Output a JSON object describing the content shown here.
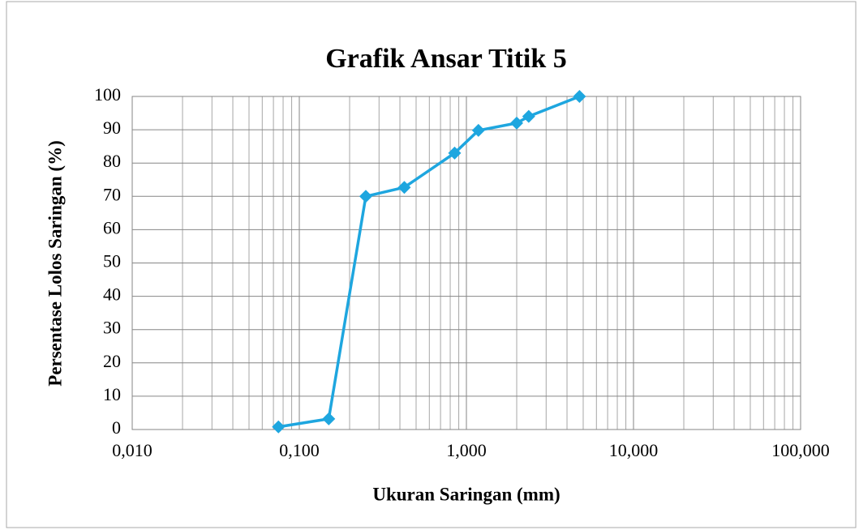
{
  "chart_data": {
    "type": "line",
    "title": "Grafik Ansar Titik 5",
    "x_label": "Ukuran Saringan (mm)",
    "y_label": "Persentase Lolos Saringan  (%)",
    "x": [
      0.075,
      0.15,
      0.25,
      0.425,
      0.85,
      1.18,
      2.0,
      2.36,
      4.75
    ],
    "values": [
      0.8,
      3.2,
      70,
      72.7,
      83,
      89.8,
      92,
      94,
      100
    ],
    "color": "#1ea6df",
    "marker": "diamond",
    "xscale": "log",
    "xlim": [
      0.01,
      100
    ],
    "xticks": [
      {
        "value": 0.01,
        "label": "0,010"
      },
      {
        "value": 0.1,
        "label": "0,100"
      },
      {
        "value": 1,
        "label": "1,000"
      },
      {
        "value": 10,
        "label": "10,000"
      },
      {
        "value": 100,
        "label": "100,000"
      }
    ],
    "ylim": [
      0,
      100
    ],
    "yticks": [
      0,
      10,
      20,
      30,
      40,
      50,
      60,
      70,
      80,
      90,
      100
    ],
    "grid": true,
    "minor_grid": true
  }
}
